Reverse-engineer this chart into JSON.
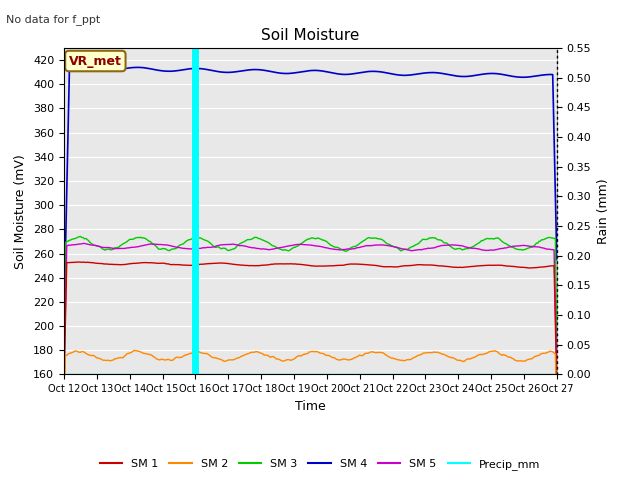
{
  "title": "Soil Moisture",
  "subtitle": "No data for f_ppt",
  "ylabel_left": "Soil Moisture (mV)",
  "ylabel_right": "Rain (mm)",
  "xlabel": "Time",
  "vr_met_label": "VR_met",
  "x_tick_labels": [
    "Oct 12",
    "Oct 13",
    "Oct 14",
    "Oct 15",
    "Oct 16",
    "Oct 17",
    "Oct 18",
    "Oct 19",
    "Oct 20",
    "Oct 21",
    "Oct 22",
    "Oct 23",
    "Oct 24",
    "Oct 25",
    "Oct 26",
    "Oct 27"
  ],
  "ylim_left": [
    160,
    430
  ],
  "ylim_right": [
    0.0,
    0.55
  ],
  "yticks_left": [
    160,
    180,
    200,
    220,
    240,
    260,
    280,
    300,
    320,
    340,
    360,
    380,
    400,
    420
  ],
  "yticks_right": [
    0.0,
    0.05,
    0.1,
    0.15,
    0.2,
    0.25,
    0.3,
    0.35,
    0.4,
    0.45,
    0.5,
    0.55
  ],
  "vline_x_idx": 120,
  "vline_color": "cyan",
  "sm1_color": "#cc0000",
  "sm2_color": "#ff8800",
  "sm3_color": "#00cc00",
  "sm4_color": "#0000cc",
  "sm5_color": "#cc00cc",
  "precip_color": "cyan",
  "background_color": "#e8e8e8",
  "grid_color": "white",
  "n_points": 361,
  "figsize": [
    6.4,
    4.8
  ],
  "dpi": 100
}
